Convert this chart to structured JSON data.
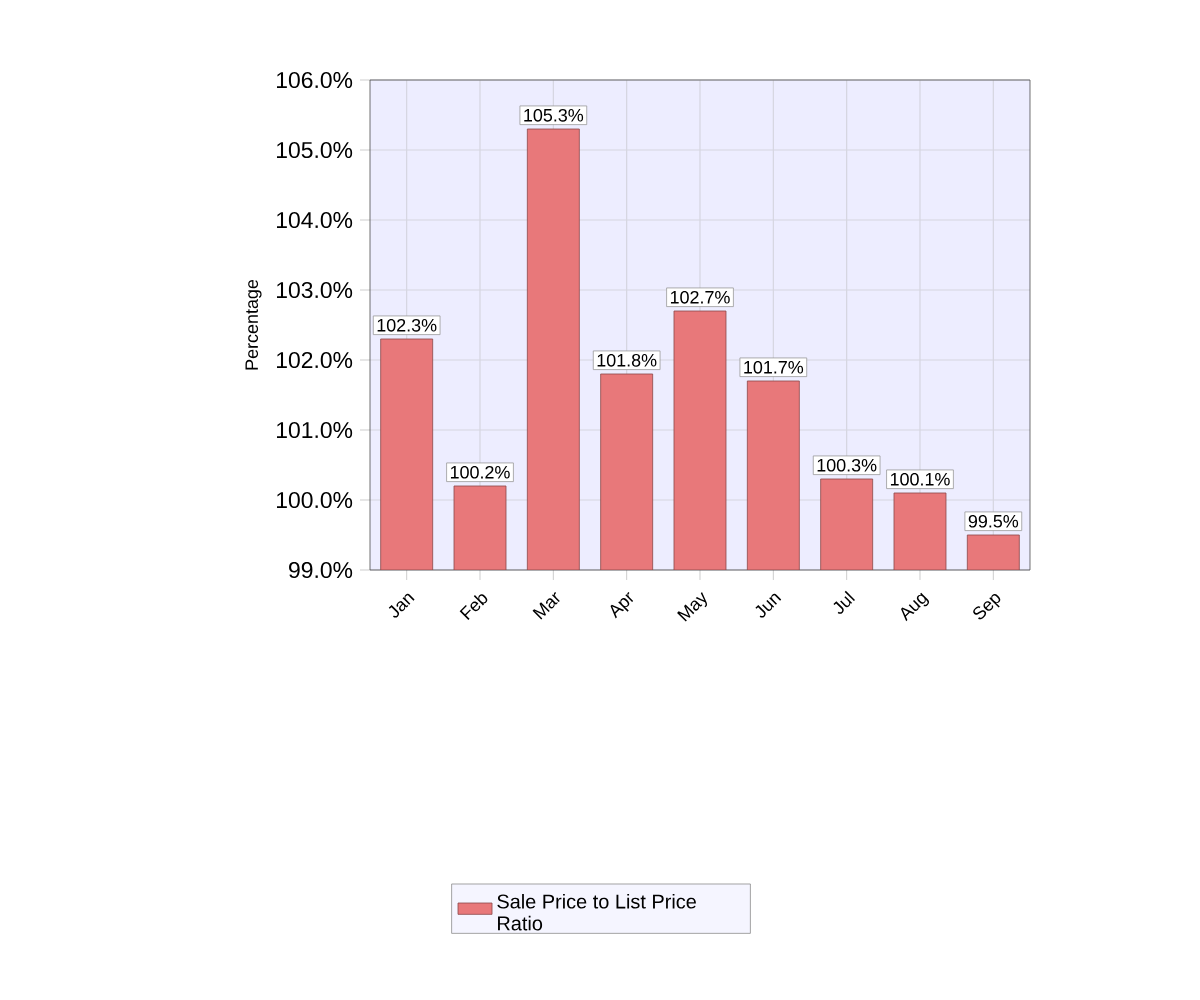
{
  "chart_data": {
    "type": "bar",
    "categories": [
      "Jan",
      "Feb",
      "Mar",
      "Apr",
      "May",
      "Jun",
      "Jul",
      "Aug",
      "Sep"
    ],
    "series": [
      {
        "name": "Sale Price to List Price Ratio",
        "color": "#e8787a",
        "values": [
          102.3,
          100.2,
          105.3,
          101.8,
          102.7,
          101.7,
          100.3,
          100.1,
          99.5
        ],
        "value_labels": [
          "102.3%",
          "100.2%",
          "105.3%",
          "101.8%",
          "102.7%",
          "101.7%",
          "100.3%",
          "100.1%",
          "99.5%"
        ]
      }
    ],
    "ylabel": "Percentage",
    "ylim": [
      99,
      106
    ],
    "yticks": [
      {
        "value": 99,
        "label": "99.0%"
      },
      {
        "value": 100,
        "label": "100.0%"
      },
      {
        "value": 101,
        "label": "101.0%"
      },
      {
        "value": 102,
        "label": "102.0%"
      },
      {
        "value": 103,
        "label": "103.0%"
      },
      {
        "value": 104,
        "label": "104.0%"
      },
      {
        "value": 105,
        "label": "105.0%"
      },
      {
        "value": 106,
        "label": "106.0%"
      }
    ],
    "grid": true,
    "legend": "bottom"
  }
}
